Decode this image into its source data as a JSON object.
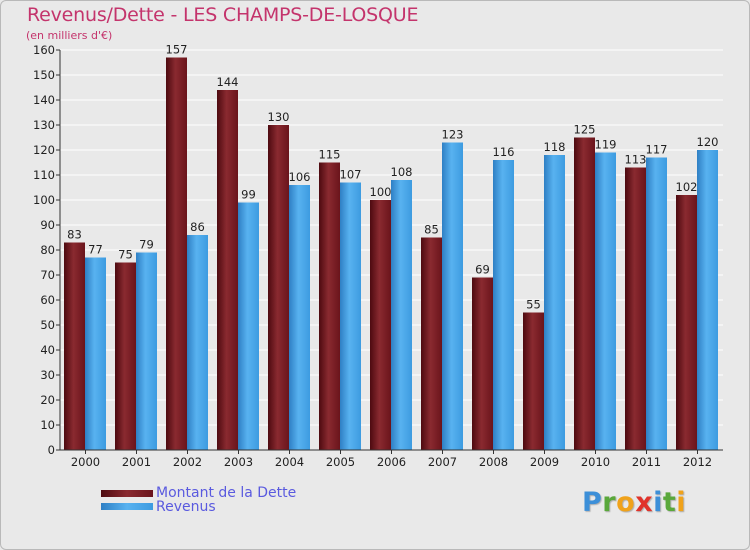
{
  "colors": {
    "dette": "#7a1a22",
    "revenus": "#3d9be0",
    "title": "#c4346c",
    "legend_text": "#5a5adf"
  },
  "chart_data": {
    "type": "bar",
    "title": "Revenus/Dette - LES CHAMPS-DE-LOSQUE",
    "subtitle": "(en milliers d'€)",
    "xlabel": "",
    "ylabel": "",
    "ylim": [
      0,
      160
    ],
    "yticks": [
      0,
      10,
      20,
      30,
      40,
      50,
      60,
      70,
      80,
      90,
      100,
      110,
      120,
      130,
      140,
      150,
      160
    ],
    "grid": true,
    "categories": [
      "2000",
      "2001",
      "2002",
      "2003",
      "2004",
      "2005",
      "2006",
      "2007",
      "2008",
      "2009",
      "2010",
      "2011",
      "2012"
    ],
    "series": [
      {
        "name": "Montant de la Dette",
        "values": [
          83,
          75,
          157,
          144,
          130,
          115,
          100,
          85,
          69,
          55,
          125,
          113,
          102
        ]
      },
      {
        "name": "Revenus",
        "values": [
          77,
          79,
          86,
          99,
          106,
          107,
          108,
          123,
          116,
          118,
          119,
          117,
          120
        ]
      }
    ],
    "legend_position": "bottom-left"
  },
  "logo": {
    "letters": [
      {
        "char": "P",
        "color": "#3c8fd8"
      },
      {
        "char": "r",
        "color": "#5aa83b"
      },
      {
        "char": "o",
        "color": "#f0a21a"
      },
      {
        "char": "x",
        "color": "#e0332b"
      },
      {
        "char": "i",
        "color": "#3c8fd8"
      },
      {
        "char": "t",
        "color": "#5aa83b"
      },
      {
        "char": "i",
        "color": "#f0a21a"
      }
    ]
  }
}
